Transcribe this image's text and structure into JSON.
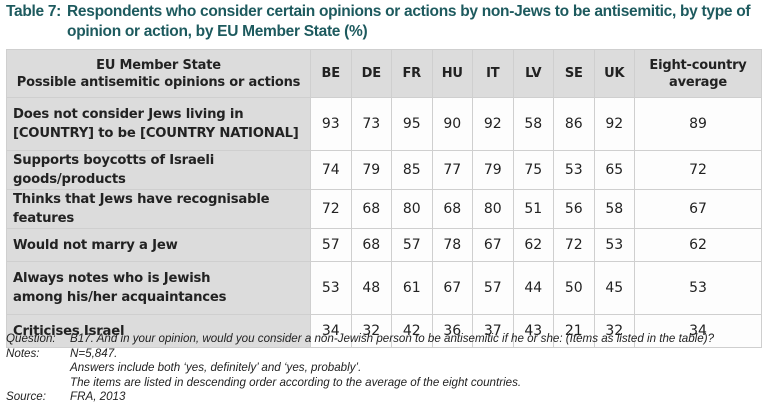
{
  "title": {
    "label": "Table 7:",
    "text": "Respondents who consider certain opinions or actions by non-Jews to be antisemitic, by type of opinion or action, by EU Member State (%)"
  },
  "table": {
    "header": {
      "label_line1": "EU Member State",
      "label_line2": "Possible antisemitic opinions or actions",
      "countries": [
        "BE",
        "DE",
        "FR",
        "HU",
        "IT",
        "LV",
        "SE",
        "UK"
      ],
      "average_line1": "Eight-country",
      "average_line2": "average"
    },
    "rows": [
      {
        "label_line1": "Does not consider Jews living in",
        "label_line2": "[COUNTRY] to be [COUNTRY NATIONAL]",
        "values": [
          93,
          73,
          95,
          90,
          92,
          58,
          86,
          92
        ],
        "average": 89
      },
      {
        "label_line1": "Supports boycotts of Israeli goods/products",
        "label_line2": "",
        "values": [
          74,
          79,
          85,
          77,
          79,
          75,
          53,
          65
        ],
        "average": 72
      },
      {
        "label_line1": "Thinks that Jews have recognisable features",
        "label_line2": "",
        "values": [
          72,
          68,
          80,
          68,
          80,
          51,
          56,
          58
        ],
        "average": 67
      },
      {
        "label_line1": "Would not marry a Jew",
        "label_line2": "",
        "values": [
          57,
          68,
          57,
          78,
          67,
          62,
          72,
          53
        ],
        "average": 62
      },
      {
        "label_line1": "Always notes who is Jewish",
        "label_line2": "among his/her acquaintances",
        "values": [
          53,
          48,
          61,
          67,
          57,
          44,
          50,
          45
        ],
        "average": 53
      },
      {
        "label_line1": "Criticises Israel",
        "label_line2": "",
        "values": [
          34,
          32,
          42,
          36,
          37,
          43,
          21,
          32
        ],
        "average": 34
      }
    ]
  },
  "notes": {
    "question_key": "Question:",
    "question": "B17. And in your opinion, would you consider a non-Jewish person to be antisemitic if he or she: (Items as listed in the table)?",
    "notes_key": "Notes:",
    "notes": [
      "N=5,847.",
      "Answers include both ‘yes, definitely’ and ‘yes, probably’.",
      "The items are listed in descending order according to the average of the eight countries."
    ],
    "source_key": "Source:",
    "source": "FRA, 2013"
  },
  "colors": {
    "title": "#1d5a5e",
    "header_bg": "#dcdcdc",
    "cell_bg": "#fdfdfd",
    "border": "#cfcfcf"
  }
}
